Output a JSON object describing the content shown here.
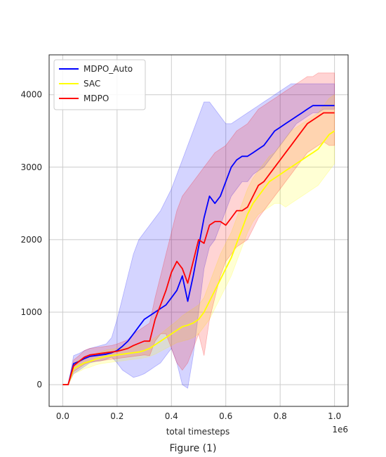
{
  "figure": {
    "caption": "Figure (1)"
  },
  "chart_data": {
    "type": "line",
    "xlabel": "total timesteps",
    "x_offset_label": "1e6",
    "ylabel": "",
    "xlim": [
      -0.05,
      1.05
    ],
    "ylim": [
      -300,
      4550
    ],
    "x_ticks": [
      0.0,
      0.2,
      0.4,
      0.6,
      0.8,
      1.0
    ],
    "x_tick_labels": [
      "0.0",
      "0.2",
      "0.4",
      "0.6",
      "0.8",
      "1.0"
    ],
    "y_ticks": [
      0,
      1000,
      2000,
      3000,
      4000
    ],
    "y_tick_labels": [
      "0",
      "1000",
      "2000",
      "3000",
      "4000"
    ],
    "grid": true,
    "legend_position": "top-left",
    "x": [
      0,
      0.02,
      0.04,
      0.06,
      0.08,
      0.1,
      0.12,
      0.14,
      0.16,
      0.18,
      0.2,
      0.22,
      0.24,
      0.26,
      0.28,
      0.3,
      0.32,
      0.34,
      0.36,
      0.38,
      0.4,
      0.42,
      0.44,
      0.46,
      0.48,
      0.5,
      0.52,
      0.54,
      0.56,
      0.58,
      0.6,
      0.62,
      0.64,
      0.66,
      0.68,
      0.7,
      0.72,
      0.74,
      0.76,
      0.78,
      0.8,
      0.82,
      0.84,
      0.86,
      0.88,
      0.9,
      0.92,
      0.94,
      0.96,
      0.98,
      1.0
    ],
    "series": [
      {
        "name": "MDPO_Auto",
        "color": "#0000ff",
        "values": [
          0,
          0,
          290,
          320,
          360,
          390,
          400,
          410,
          420,
          440,
          470,
          530,
          600,
          700,
          800,
          900,
          950,
          1000,
          1050,
          1100,
          1200,
          1300,
          1500,
          1150,
          1500,
          1900,
          2300,
          2600,
          2500,
          2600,
          2800,
          3000,
          3100,
          3150,
          3150,
          3200,
          3250,
          3300,
          3400,
          3500,
          3550,
          3600,
          3650,
          3700,
          3750,
          3800,
          3850,
          3850,
          3850,
          3850,
          3850
        ],
        "lower": [
          0,
          0,
          150,
          200,
          250,
          300,
          320,
          330,
          350,
          380,
          300,
          200,
          150,
          100,
          120,
          150,
          200,
          250,
          300,
          400,
          500,
          300,
          0,
          -50,
          400,
          1000,
          1600,
          1900,
          2000,
          2200,
          2400,
          2600,
          2700,
          2800,
          2800,
          2900,
          2950,
          3000,
          3100,
          3200,
          3300,
          3400,
          3500,
          3600,
          3650,
          3700,
          3750,
          3750,
          3800,
          3800,
          3800
        ],
        "upper": [
          0,
          0,
          400,
          430,
          470,
          500,
          520,
          540,
          560,
          650,
          900,
          1200,
          1500,
          1800,
          2000,
          2100,
          2200,
          2300,
          2400,
          2550,
          2700,
          2900,
          3100,
          3300,
          3500,
          3700,
          3900,
          3900,
          3800,
          3700,
          3600,
          3600,
          3650,
          3700,
          3750,
          3800,
          3850,
          3900,
          3950,
          4000,
          4050,
          4100,
          4150,
          4150,
          4150,
          4150,
          4150,
          4150,
          4150,
          4150,
          4150
        ]
      },
      {
        "name": "SAC",
        "color": "#ffff00",
        "values": [
          0,
          0,
          220,
          260,
          300,
          320,
          350,
          370,
          390,
          400,
          410,
          420,
          430,
          440,
          450,
          470,
          500,
          550,
          600,
          650,
          700,
          750,
          800,
          820,
          850,
          900,
          1000,
          1150,
          1300,
          1450,
          1600,
          1750,
          1950,
          2150,
          2350,
          2500,
          2600,
          2700,
          2800,
          2850,
          2900,
          2950,
          3000,
          3050,
          3100,
          3150,
          3200,
          3250,
          3350,
          3450,
          3500
        ],
        "lower": [
          0,
          0,
          150,
          180,
          220,
          240,
          270,
          290,
          300,
          310,
          320,
          330,
          340,
          350,
          360,
          370,
          390,
          420,
          460,
          500,
          540,
          580,
          600,
          620,
          650,
          700,
          800,
          900,
          1050,
          1200,
          1350,
          1500,
          1700,
          1900,
          2100,
          2250,
          2350,
          2400,
          2450,
          2500,
          2500,
          2450,
          2500,
          2550,
          2600,
          2650,
          2700,
          2750,
          2850,
          2950,
          3050
        ],
        "upper": [
          0,
          0,
          300,
          340,
          380,
          400,
          430,
          450,
          480,
          490,
          500,
          510,
          520,
          530,
          540,
          560,
          600,
          650,
          700,
          760,
          820,
          880,
          950,
          1000,
          1050,
          1100,
          1200,
          1400,
          1600,
          1800,
          1950,
          2100,
          2300,
          2500,
          2700,
          2850,
          2950,
          3050,
          3150,
          3200,
          3300,
          3400,
          3500,
          3550,
          3600,
          3650,
          3700,
          3750,
          3850,
          3950,
          4000
        ]
      },
      {
        "name": "MDPO",
        "color": "#ff0000",
        "values": [
          0,
          0,
          260,
          320,
          380,
          410,
          420,
          430,
          440,
          450,
          460,
          480,
          500,
          540,
          570,
          600,
          600,
          900,
          1100,
          1300,
          1550,
          1700,
          1600,
          1400,
          1700,
          2000,
          1950,
          2200,
          2250,
          2250,
          2200,
          2300,
          2400,
          2400,
          2450,
          2600,
          2750,
          2800,
          2900,
          3000,
          3100,
          3200,
          3300,
          3400,
          3500,
          3600,
          3650,
          3700,
          3750,
          3750,
          3750
        ],
        "lower": [
          0,
          0,
          180,
          230,
          280,
          310,
          320,
          330,
          340,
          350,
          360,
          370,
          380,
          390,
          400,
          410,
          400,
          600,
          700,
          700,
          500,
          300,
          200,
          300,
          500,
          700,
          400,
          900,
          1200,
          1500,
          1700,
          1800,
          1900,
          1950,
          2000,
          2150,
          2300,
          2400,
          2500,
          2600,
          2700,
          2800,
          2900,
          3000,
          3100,
          3200,
          3250,
          3300,
          3350,
          3300,
          3300
        ],
        "upper": [
          0,
          0,
          340,
          400,
          470,
          500,
          510,
          520,
          530,
          540,
          560,
          590,
          620,
          700,
          750,
          800,
          850,
          1200,
          1500,
          1800,
          2100,
          2400,
          2600,
          2700,
          2800,
          2900,
          3000,
          3100,
          3200,
          3250,
          3300,
          3400,
          3500,
          3550,
          3600,
          3700,
          3800,
          3850,
          3900,
          3950,
          4000,
          4050,
          4100,
          4150,
          4200,
          4250,
          4250,
          4300,
          4300,
          4300,
          4300
        ]
      }
    ]
  }
}
